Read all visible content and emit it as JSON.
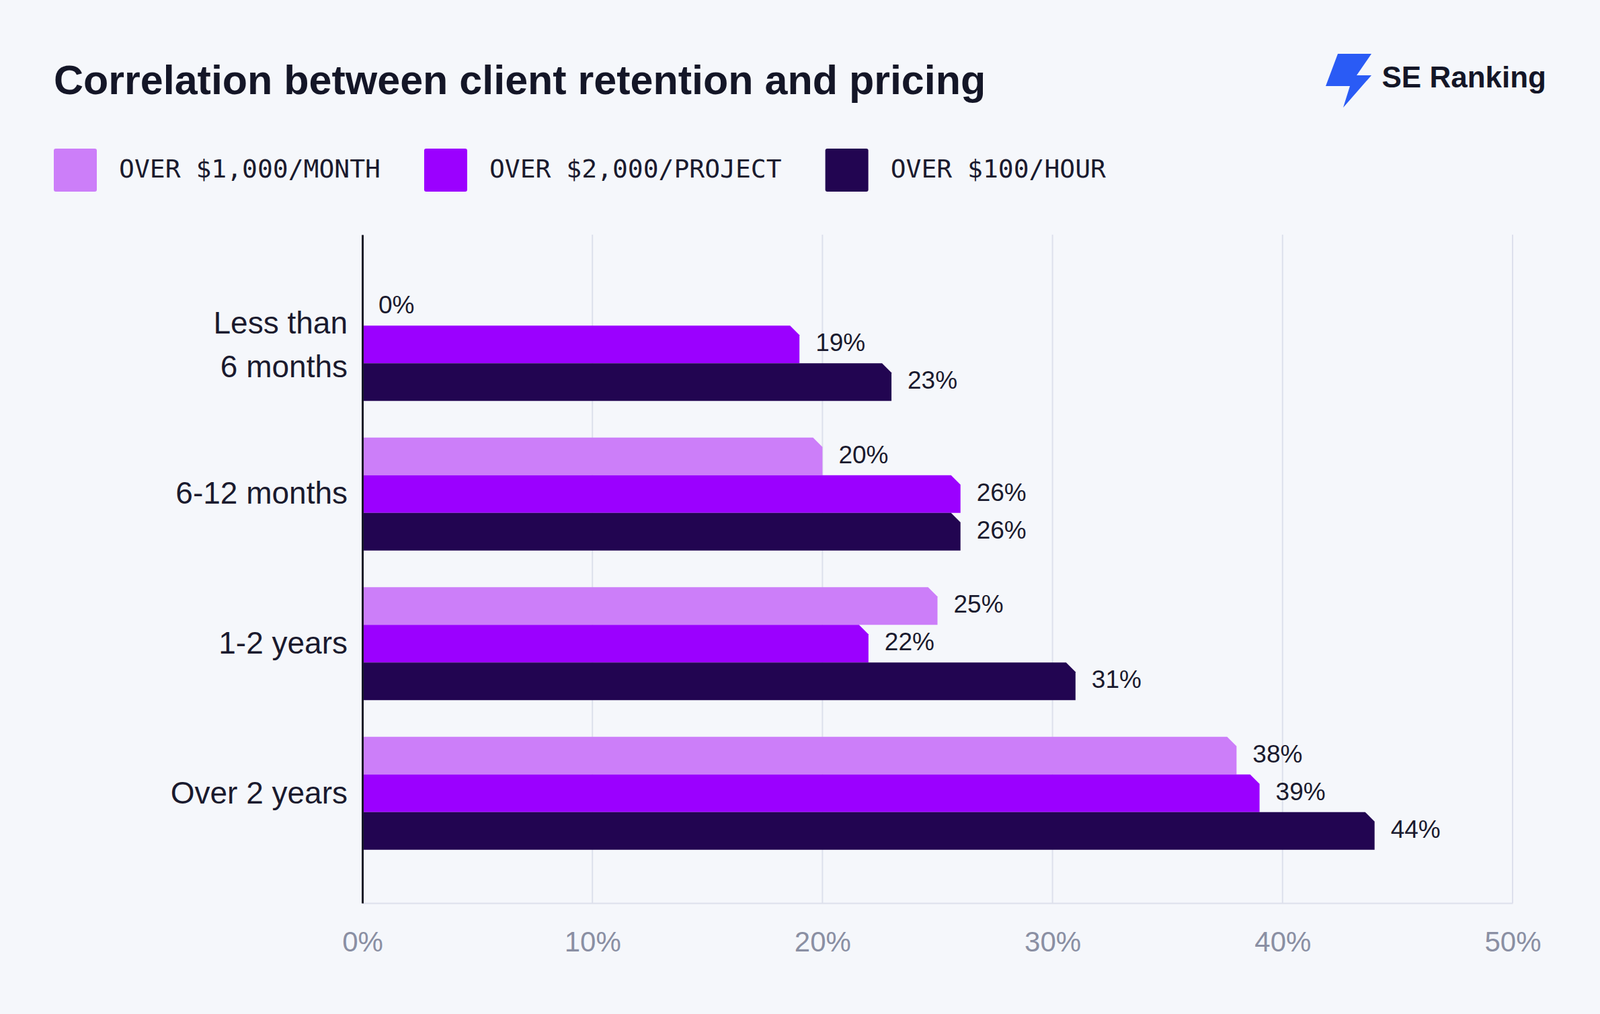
{
  "chart_data": {
    "type": "bar",
    "orientation": "horizontal",
    "title": "Correlation between client retention and pricing",
    "brand": "SE Ranking",
    "categories": [
      "Less than 6 months",
      "6-12 months",
      "1-2 years",
      "Over 2 years"
    ],
    "series": [
      {
        "name": "OVER $1,000/MONTH",
        "color": "#cc7ef9",
        "values": [
          0,
          20,
          25,
          38
        ],
        "value_labels": [
          "0%",
          "20%",
          "25%",
          "38%"
        ]
      },
      {
        "name": "OVER $2,000/PROJECT",
        "color": "#9b00ff",
        "values": [
          19,
          26,
          22,
          39
        ],
        "value_labels": [
          "19%",
          "26%",
          "22%",
          "39%"
        ]
      },
      {
        "name": "OVER $100/HOUR",
        "color": "#220551",
        "values": [
          23,
          26,
          31,
          44
        ],
        "value_labels": [
          "23%",
          "26%",
          "31%",
          "44%"
        ]
      }
    ],
    "xlim": [
      0,
      50
    ],
    "xticks": [
      {
        "value": 0,
        "label": "0%"
      },
      {
        "value": 10,
        "label": "10%"
      },
      {
        "value": 20,
        "label": "20%"
      },
      {
        "value": 30,
        "label": "30%"
      },
      {
        "value": 40,
        "label": "40%"
      },
      {
        "value": 50,
        "label": "50%"
      }
    ],
    "grid": true,
    "legend": "top-left",
    "data_labels": true
  }
}
